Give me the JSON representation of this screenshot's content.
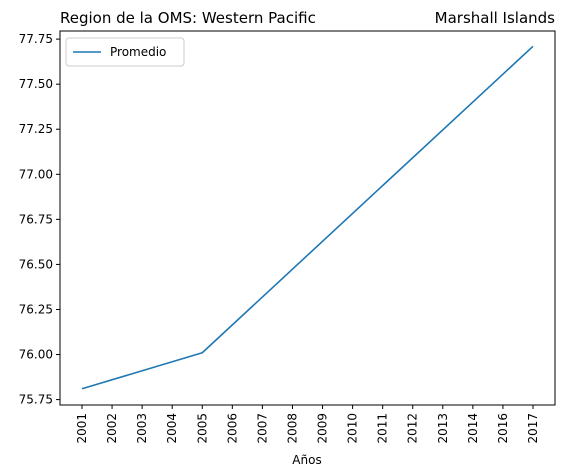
{
  "chart_data": {
    "type": "line",
    "title_left": "Region de la OMS: Western Pacific",
    "title_right": "Marshall Islands",
    "xlabel": "Años",
    "ylabel": "",
    "x": [
      "2001",
      "2002",
      "2003",
      "2004",
      "2005",
      "2006",
      "2007",
      "2008",
      "2009",
      "2010",
      "2011",
      "2012",
      "2013",
      "2014",
      "2016",
      "2017"
    ],
    "series": [
      {
        "name": "Promedio",
        "color": "#1f77b4",
        "points": [
          {
            "x": "2001",
            "y": 75.81
          },
          {
            "x": "2005",
            "y": 76.01
          },
          {
            "x": "2017",
            "y": 77.71
          }
        ]
      }
    ],
    "yticks": [
      "75.75",
      "76.00",
      "76.25",
      "76.50",
      "76.75",
      "77.00",
      "77.25",
      "77.50",
      "77.75"
    ],
    "ylim": [
      75.72,
      77.795
    ],
    "grid": false,
    "legend_position": "top-left"
  }
}
